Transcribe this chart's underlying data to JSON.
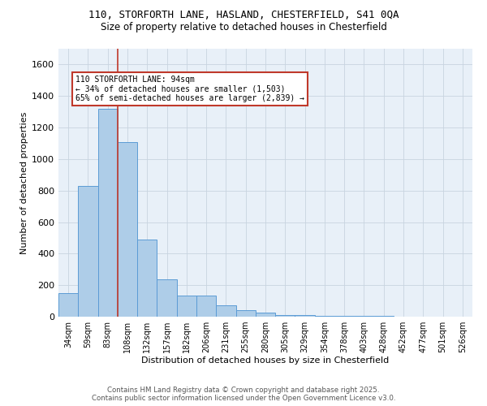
{
  "title_line1": "110, STORFORTH LANE, HASLAND, CHESTERFIELD, S41 0QA",
  "title_line2": "Size of property relative to detached houses in Chesterfield",
  "xlabel": "Distribution of detached houses by size in Chesterfield",
  "ylabel": "Number of detached properties",
  "categories": [
    "34sqm",
    "59sqm",
    "83sqm",
    "108sqm",
    "132sqm",
    "157sqm",
    "182sqm",
    "206sqm",
    "231sqm",
    "255sqm",
    "280sqm",
    "305sqm",
    "329sqm",
    "354sqm",
    "378sqm",
    "403sqm",
    "428sqm",
    "452sqm",
    "477sqm",
    "501sqm",
    "526sqm"
  ],
  "values": [
    150,
    830,
    1320,
    1110,
    490,
    235,
    135,
    135,
    70,
    43,
    25,
    10,
    10,
    5,
    5,
    5,
    5,
    2,
    2,
    2,
    2
  ],
  "bar_color": "#aecde8",
  "bar_edge_color": "#5b9bd5",
  "vline_pos": 2.5,
  "vline_color": "#c0392b",
  "annotation_text": "110 STORFORTH LANE: 94sqm\n← 34% of detached houses are smaller (1,503)\n65% of semi-detached houses are larger (2,839) →",
  "annotation_box_edge_color": "#c0392b",
  "ylim": [
    0,
    1700
  ],
  "yticks": [
    0,
    200,
    400,
    600,
    800,
    1000,
    1200,
    1400,
    1600
  ],
  "grid_color": "#c8d4e0",
  "background_color": "#e8f0f8",
  "footer_line1": "Contains HM Land Registry data © Crown copyright and database right 2025.",
  "footer_line2": "Contains public sector information licensed under the Open Government Licence v3.0."
}
